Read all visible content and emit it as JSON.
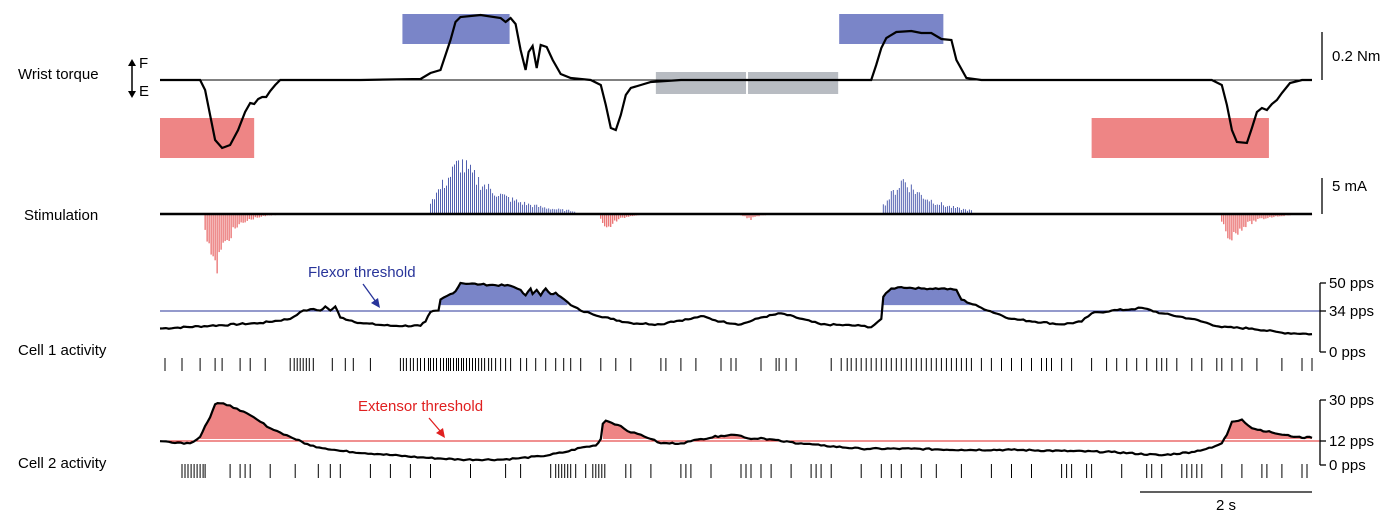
{
  "chart_data": {
    "type": "line",
    "time_scale_label": "2 s",
    "panels": {
      "torque": {
        "label": "Wrist torque",
        "flex_letter": "F",
        "ext_letter": "E",
        "scale_label": "0.2 Nm",
        "trace": [
          [
            0,
            80
          ],
          [
            40,
            80
          ],
          [
            45,
            90
          ],
          [
            50,
            115
          ],
          [
            55,
            140
          ],
          [
            62,
            148
          ],
          [
            70,
            145
          ],
          [
            78,
            130
          ],
          [
            85,
            112
          ],
          [
            90,
            103
          ],
          [
            94,
            104
          ],
          [
            98,
            99
          ],
          [
            102,
            97
          ],
          [
            106,
            97
          ],
          [
            110,
            91
          ],
          [
            115,
            85
          ],
          [
            120,
            80
          ],
          [
            130,
            80
          ],
          [
            200,
            80
          ],
          [
            260,
            79
          ],
          [
            270,
            73
          ],
          [
            280,
            70
          ],
          [
            290,
            40
          ],
          [
            295,
            22
          ],
          [
            300,
            17
          ],
          [
            320,
            15
          ],
          [
            340,
            18
          ],
          [
            345,
            22
          ],
          [
            350,
            18
          ],
          [
            355,
            24
          ],
          [
            360,
            50
          ],
          [
            365,
            70
          ],
          [
            368,
            52
          ],
          [
            372,
            46
          ],
          [
            376,
            68
          ],
          [
            380,
            45
          ],
          [
            386,
            47
          ],
          [
            392,
            60
          ],
          [
            400,
            74
          ],
          [
            410,
            78
          ],
          [
            430,
            80
          ],
          [
            440,
            85
          ],
          [
            445,
            105
          ],
          [
            450,
            128
          ],
          [
            455,
            130
          ],
          [
            460,
            115
          ],
          [
            465,
            95
          ],
          [
            470,
            88
          ],
          [
            480,
            85
          ],
          [
            490,
            82
          ],
          [
            520,
            80
          ],
          [
            600,
            80
          ],
          [
            660,
            80
          ],
          [
            710,
            80
          ],
          [
            715,
            65
          ],
          [
            720,
            48
          ],
          [
            725,
            38
          ],
          [
            735,
            32
          ],
          [
            750,
            31
          ],
          [
            760,
            33
          ],
          [
            770,
            33
          ],
          [
            780,
            39
          ],
          [
            790,
            40
          ],
          [
            795,
            60
          ],
          [
            805,
            78
          ],
          [
            820,
            80
          ],
          [
            900,
            80
          ],
          [
            1000,
            80
          ],
          [
            1050,
            80
          ],
          [
            1060,
            85
          ],
          [
            1065,
            105
          ],
          [
            1070,
            130
          ],
          [
            1075,
            142
          ],
          [
            1085,
            143
          ],
          [
            1090,
            128
          ],
          [
            1095,
            112
          ],
          [
            1100,
            108
          ],
          [
            1105,
            110
          ],
          [
            1110,
            104
          ],
          [
            1115,
            100
          ],
          [
            1120,
            93
          ],
          [
            1128,
            83
          ],
          [
            1140,
            80
          ],
          [
            1150,
            80
          ]
        ],
        "flexion_cues": [
          [
            242,
            349
          ],
          [
            678,
            782
          ]
        ],
        "extension_cues": [
          [
            0,
            94
          ],
          [
            930,
            1107
          ]
        ],
        "rest_cues": [
          [
            495,
            585
          ],
          [
            587,
            677
          ]
        ]
      },
      "stimulation": {
        "label": "Stimulation",
        "scale_label": "5 mA",
        "flexion_bursts": [
          {
            "start": 270,
            "end": 415,
            "peak_at": 300,
            "amplitude_ma": 6.2,
            "decay": 40
          },
          {
            "start": 722,
            "end": 810,
            "peak_at": 742,
            "amplitude_ma": 4.1,
            "decay": 30
          }
        ],
        "extension_bursts": [
          {
            "start": 45,
            "end": 135,
            "peak_at": 55,
            "amplitude_ma": 6.9,
            "decay": 15
          },
          {
            "start": 440,
            "end": 500,
            "peak_at": 445,
            "amplitude_ma": 2.0,
            "decay": 12
          },
          {
            "start": 580,
            "end": 615,
            "peak_at": 590,
            "amplitude_ma": 0.6,
            "decay": 10
          },
          {
            "start": 1060,
            "end": 1150,
            "peak_at": 1068,
            "amplitude_ma": 3.0,
            "decay": 20
          }
        ]
      },
      "cell1": {
        "label": "Cell 1 activity",
        "annotation": "Flexor threshold",
        "ticks": [
          "50 pps",
          "34 pps",
          "0 pps"
        ],
        "tick_values": [
          50,
          34,
          0
        ],
        "threshold_pps": 34,
        "trace": [
          [
            0,
            17
          ],
          [
            50,
            19
          ],
          [
            100,
            21
          ],
          [
            130,
            24
          ],
          [
            140,
            29
          ],
          [
            150,
            31
          ],
          [
            160,
            30
          ],
          [
            165,
            33
          ],
          [
            170,
            30
          ],
          [
            175,
            33
          ],
          [
            180,
            25
          ],
          [
            200,
            21
          ],
          [
            230,
            19
          ],
          [
            260,
            19
          ],
          [
            265,
            22
          ],
          [
            270,
            29
          ],
          [
            278,
            30
          ],
          [
            280,
            38
          ],
          [
            290,
            42
          ],
          [
            295,
            44
          ],
          [
            300,
            50
          ],
          [
            320,
            49
          ],
          [
            350,
            48
          ],
          [
            360,
            45
          ],
          [
            365,
            41
          ],
          [
            370,
            46
          ],
          [
            372,
            42
          ],
          [
            376,
            45
          ],
          [
            380,
            41
          ],
          [
            385,
            46
          ],
          [
            390,
            42
          ],
          [
            395,
            43
          ],
          [
            400,
            40
          ],
          [
            410,
            34
          ],
          [
            420,
            30
          ],
          [
            430,
            28
          ],
          [
            450,
            24
          ],
          [
            470,
            21
          ],
          [
            500,
            20
          ],
          [
            510,
            22
          ],
          [
            530,
            24
          ],
          [
            540,
            26
          ],
          [
            560,
            22
          ],
          [
            580,
            20
          ],
          [
            600,
            25
          ],
          [
            620,
            28
          ],
          [
            660,
            20
          ],
          [
            700,
            19
          ],
          [
            710,
            18
          ],
          [
            720,
            24
          ],
          [
            722,
            40
          ],
          [
            730,
            46
          ],
          [
            740,
            47
          ],
          [
            760,
            46
          ],
          [
            780,
            46
          ],
          [
            795,
            45
          ],
          [
            800,
            38
          ],
          [
            820,
            32
          ],
          [
            850,
            24
          ],
          [
            900,
            20
          ],
          [
            920,
            22
          ],
          [
            930,
            28
          ],
          [
            950,
            30
          ],
          [
            970,
            31
          ],
          [
            980,
            32
          ],
          [
            1000,
            28
          ],
          [
            1030,
            24
          ],
          [
            1060,
            18
          ],
          [
            1090,
            17
          ],
          [
            1120,
            14
          ],
          [
            1150,
            13
          ]
        ],
        "spikes": [
          5,
          22,
          40,
          55,
          62,
          80,
          90,
          105,
          130,
          134,
          137,
          140,
          143,
          146,
          149,
          153,
          172,
          185,
          193,
          210,
          240,
          243,
          246,
          250,
          253,
          257,
          260,
          264,
          268,
          270,
          273,
          276,
          280,
          283,
          286,
          288,
          290,
          293,
          296,
          298,
          301,
          303,
          306,
          309,
          312,
          315,
          318,
          321,
          324,
          328,
          331,
          335,
          340,
          345,
          350,
          360,
          366,
          375,
          385,
          395,
          403,
          410,
          420,
          440,
          455,
          470,
          500,
          505,
          520,
          535,
          560,
          570,
          575,
          600,
          615,
          618,
          625,
          635,
          670,
          680,
          686,
          690,
          695,
          700,
          705,
          710,
          715,
          720,
          725,
          730,
          735,
          740,
          745,
          750,
          755,
          760,
          765,
          770,
          775,
          780,
          785,
          790,
          795,
          800,
          805,
          810,
          820,
          830,
          840,
          850,
          860,
          870,
          880,
          885,
          890,
          900,
          910,
          930,
          945,
          955,
          965,
          975,
          985,
          995,
          1000,
          1005,
          1015,
          1030,
          1040,
          1055,
          1060,
          1070,
          1080,
          1095,
          1120,
          1140,
          1150
        ]
      },
      "cell2": {
        "label": "Cell 2 activity",
        "annotation": "Extensor threshold",
        "ticks": [
          "30 pps",
          "12 pps",
          "0 pps"
        ],
        "tick_values": [
          30,
          12,
          0
        ],
        "threshold_pps": 12,
        "trace": [
          [
            0,
            11
          ],
          [
            30,
            10
          ],
          [
            40,
            13
          ],
          [
            45,
            18
          ],
          [
            50,
            22
          ],
          [
            55,
            28
          ],
          [
            60,
            28.5
          ],
          [
            70,
            27.5
          ],
          [
            80,
            25
          ],
          [
            90,
            23
          ],
          [
            100,
            20
          ],
          [
            110,
            17
          ],
          [
            120,
            15
          ],
          [
            130,
            13
          ],
          [
            150,
            9
          ],
          [
            180,
            6.5
          ],
          [
            220,
            5
          ],
          [
            260,
            3.5
          ],
          [
            280,
            3
          ],
          [
            300,
            2.5
          ],
          [
            340,
            2.5
          ],
          [
            355,
            3
          ],
          [
            380,
            4
          ],
          [
            405,
            6
          ],
          [
            420,
            8
          ],
          [
            435,
            9
          ],
          [
            440,
            12
          ],
          [
            442,
            19
          ],
          [
            445,
            20.5
          ],
          [
            460,
            18
          ],
          [
            470,
            15
          ],
          [
            480,
            14
          ],
          [
            490,
            12
          ],
          [
            500,
            10
          ],
          [
            520,
            10
          ],
          [
            530,
            11
          ],
          [
            540,
            12
          ],
          [
            560,
            13.5
          ],
          [
            570,
            14
          ],
          [
            580,
            13.5
          ],
          [
            590,
            12
          ],
          [
            600,
            12.5
          ],
          [
            620,
            11
          ],
          [
            640,
            10
          ],
          [
            660,
            9
          ],
          [
            700,
            7.5
          ],
          [
            750,
            7.5
          ],
          [
            800,
            7
          ],
          [
            850,
            7
          ],
          [
            900,
            6.5
          ],
          [
            950,
            6
          ],
          [
            1000,
            4.5
          ],
          [
            1030,
            6
          ],
          [
            1050,
            8
          ],
          [
            1060,
            10
          ],
          [
            1065,
            14
          ],
          [
            1070,
            20
          ],
          [
            1080,
            21
          ],
          [
            1090,
            17
          ],
          [
            1110,
            15
          ],
          [
            1120,
            14
          ],
          [
            1135,
            13
          ],
          [
            1140,
            12.5
          ],
          [
            1145,
            13
          ],
          [
            1150,
            12.5
          ]
        ],
        "spikes": [
          22,
          25,
          28,
          31,
          34,
          37,
          40,
          43,
          45,
          70,
          80,
          85,
          90,
          110,
          135,
          158,
          170,
          180,
          210,
          230,
          250,
          270,
          310,
          345,
          360,
          390,
          395,
          398,
          401,
          404,
          407,
          410,
          415,
          425,
          432,
          435,
          438,
          441,
          444,
          465,
          470,
          490,
          520,
          525,
          530,
          550,
          580,
          585,
          590,
          600,
          610,
          630,
          650,
          655,
          660,
          670,
          700,
          720,
          730,
          740,
          760,
          775,
          800,
          830,
          850,
          870,
          900,
          905,
          910,
          925,
          930,
          960,
          985,
          990,
          1000,
          1020,
          1025,
          1030,
          1035,
          1040,
          1060,
          1080,
          1100,
          1105,
          1120,
          1140,
          1145
        ]
      }
    }
  },
  "colors": {
    "flexor": "#7a85c8",
    "flexor_stim": "#4050a8",
    "flexor_text": "#28349a",
    "extensor": "#ee8585",
    "extensor_stim": "#e03030",
    "extensor_text": "#e02020",
    "rest": "#b8bcc2",
    "trace": "#000000"
  }
}
